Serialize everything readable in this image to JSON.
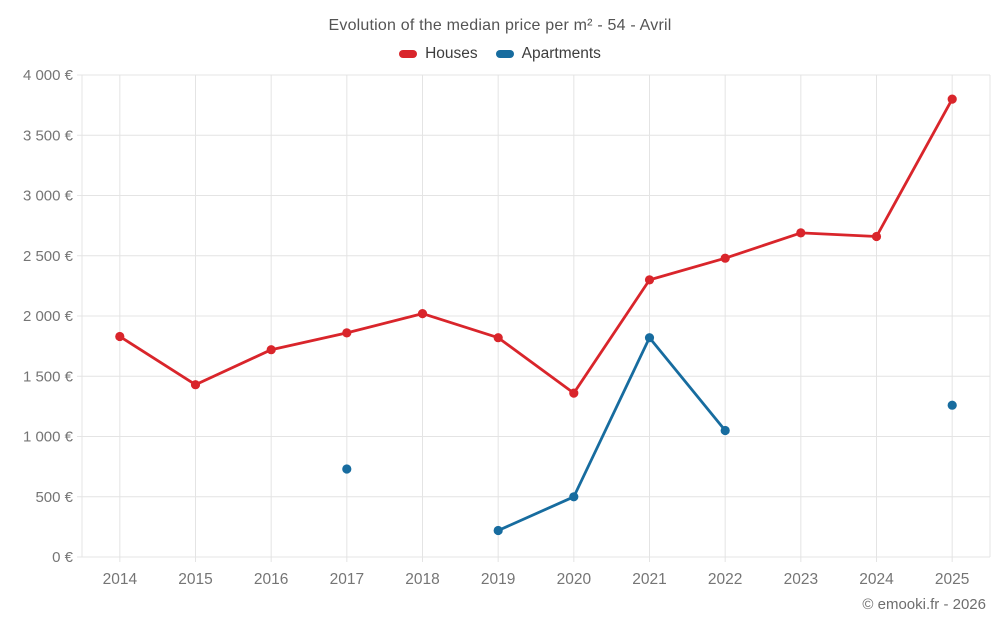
{
  "copyright": "© emooki.fr - 2026",
  "chart_data": {
    "type": "line",
    "title": "Evolution of the median price per m² - 54 - Avril",
    "categories": [
      "2014",
      "2015",
      "2016",
      "2017",
      "2018",
      "2019",
      "2020",
      "2021",
      "2022",
      "2023",
      "2024",
      "2025"
    ],
    "series": [
      {
        "name": "Houses",
        "color": "#d9252b",
        "values": [
          1830,
          1430,
          1720,
          1860,
          2020,
          1820,
          1360,
          2300,
          2480,
          2690,
          2660,
          3800
        ]
      },
      {
        "name": "Apartments",
        "color": "#176c9f",
        "values": [
          null,
          null,
          null,
          730,
          null,
          220,
          500,
          1820,
          1050,
          null,
          null,
          1260
        ]
      }
    ],
    "xlabel": "",
    "ylabel": "",
    "ylim": [
      0,
      4000
    ],
    "y_ticks": {
      "values": [
        0,
        500,
        1000,
        1500,
        2000,
        2500,
        3000,
        3500,
        4000
      ],
      "labels": [
        "0 €",
        "500 €",
        "1 000 €",
        "1 500 €",
        "2 000 €",
        "2 500 €",
        "3 000 €",
        "3 500 €",
        "4 000 €"
      ]
    },
    "grid": true,
    "legend_position": "top",
    "marker": "circle"
  }
}
